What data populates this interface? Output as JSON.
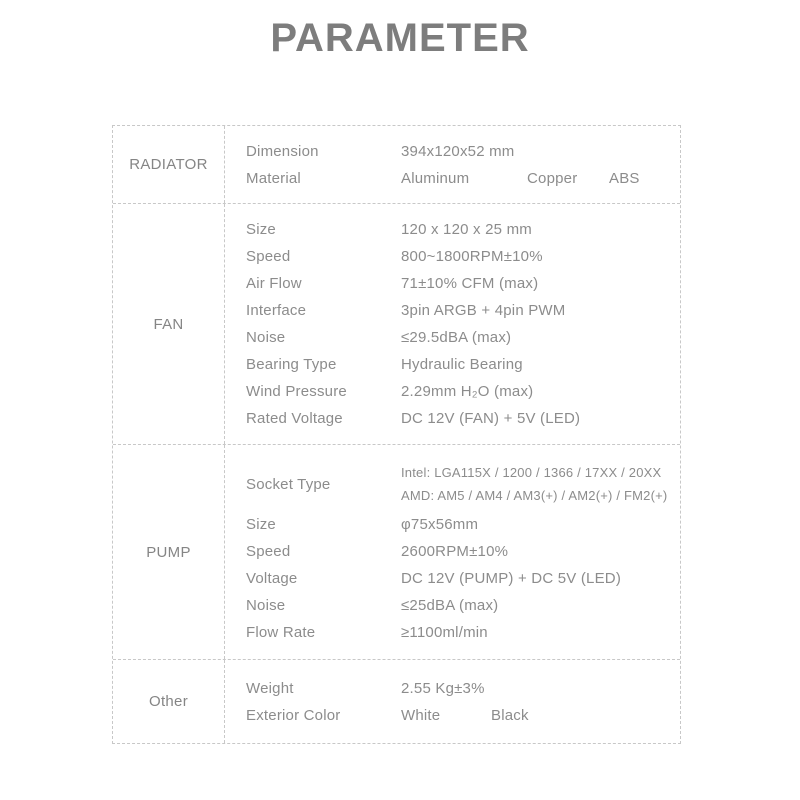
{
  "page": {
    "title": "PARAMETER"
  },
  "colors": {
    "title_gray": "#7d7d7d",
    "text_gray": "#8c8c8c",
    "border_gray": "#c8c8c8",
    "background": "#ffffff"
  },
  "table": {
    "sections": [
      {
        "label": "RADIATOR",
        "rows": [
          {
            "property": "Dimension",
            "values": [
              "394x120x52 mm"
            ]
          },
          {
            "property": "Material",
            "values": [
              "Aluminum",
              "Copper",
              "ABS"
            ]
          }
        ]
      },
      {
        "label": "FAN",
        "rows": [
          {
            "property": "Size",
            "values": [
              "120 x 120 x 25 mm"
            ]
          },
          {
            "property": "Speed",
            "values": [
              "800~1800RPM±10%"
            ]
          },
          {
            "property": "Air Flow",
            "values": [
              "71±10% CFM (max)"
            ]
          },
          {
            "property": "Interface",
            "values": [
              "3pin ARGB + 4pin PWM"
            ]
          },
          {
            "property": "Noise",
            "values": [
              "≤29.5dBA (max)"
            ]
          },
          {
            "property": "Bearing Type",
            "values": [
              "Hydraulic Bearing"
            ]
          },
          {
            "property": "Wind Pressure",
            "values": [
              "2.29mm H₂O (max)"
            ]
          },
          {
            "property": "Rated Voltage",
            "values": [
              "DC 12V (FAN) + 5V (LED)"
            ]
          }
        ]
      },
      {
        "label": "PUMP",
        "rows": [
          {
            "property": "Socket Type",
            "lines": [
              "Intel: LGA115X / 1200 / 1366 / 17XX / 20XX",
              "AMD: AM5 / AM4 / AM3(+) / AM2(+) / FM2(+)"
            ]
          },
          {
            "property": "Size",
            "values": [
              "φ75x56mm"
            ]
          },
          {
            "property": "Speed",
            "values": [
              "2600RPM±10%"
            ]
          },
          {
            "property": "Voltage",
            "values": [
              "DC 12V (PUMP) + DC 5V (LED)"
            ]
          },
          {
            "property": "Noise",
            "values": [
              "≤25dBA (max)"
            ]
          },
          {
            "property": "Flow Rate",
            "values": [
              "≥1100ml/min"
            ]
          }
        ]
      },
      {
        "label": "Other",
        "rows": [
          {
            "property": "Weight",
            "values": [
              "2.55 Kg±3%"
            ]
          },
          {
            "property": "Exterior Color",
            "values": [
              "White",
              "Black"
            ]
          }
        ]
      }
    ]
  }
}
